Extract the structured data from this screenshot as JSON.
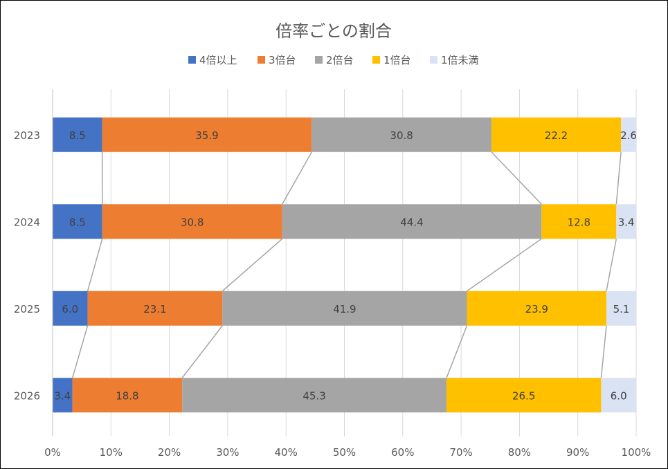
{
  "chart_data": {
    "type": "bar",
    "orientation": "horizontal",
    "stacked": "percent",
    "title": "倍率ごとの割合",
    "categories": [
      "2023",
      "2024",
      "2025",
      "2026"
    ],
    "series": [
      {
        "name": "4倍以上",
        "color": "#4472C4",
        "values": [
          8.5,
          8.5,
          6.0,
          3.4
        ]
      },
      {
        "name": "3倍台",
        "color": "#ED7D31",
        "values": [
          35.9,
          30.8,
          23.1,
          18.8
        ]
      },
      {
        "name": "2倍台",
        "color": "#A5A5A5",
        "values": [
          30.8,
          44.4,
          41.9,
          45.3
        ]
      },
      {
        "name": "1倍台",
        "color": "#FFC000",
        "values": [
          22.2,
          12.8,
          23.9,
          26.5
        ]
      },
      {
        "name": "1倍未満",
        "color": "#DAE3F3",
        "values": [
          2.6,
          3.4,
          5.1,
          6.0
        ]
      }
    ],
    "xticks": [
      "0%",
      "10%",
      "20%",
      "30%",
      "40%",
      "50%",
      "60%",
      "70%",
      "80%",
      "90%",
      "100%"
    ],
    "xlim": [
      0,
      100
    ],
    "grid": true,
    "series_lines": true,
    "legend": "top"
  }
}
